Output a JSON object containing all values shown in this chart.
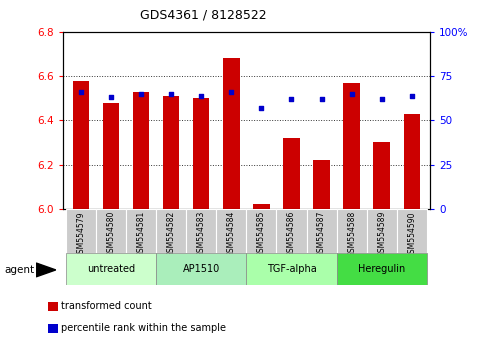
{
  "title": "GDS4361 / 8128522",
  "samples": [
    "GSM554579",
    "GSM554580",
    "GSM554581",
    "GSM554582",
    "GSM554583",
    "GSM554584",
    "GSM554585",
    "GSM554586",
    "GSM554587",
    "GSM554588",
    "GSM554589",
    "GSM554590"
  ],
  "bar_values": [
    6.58,
    6.48,
    6.53,
    6.51,
    6.5,
    6.68,
    6.02,
    6.32,
    6.22,
    6.57,
    6.3,
    6.43
  ],
  "percentile_values": [
    66,
    63,
    65,
    65,
    64,
    66,
    57,
    62,
    62,
    65,
    62,
    64
  ],
  "bar_bottom": 6.0,
  "ylim_left": [
    6.0,
    6.8
  ],
  "ylim_right": [
    0,
    100
  ],
  "yticks_left": [
    6.0,
    6.2,
    6.4,
    6.6,
    6.8
  ],
  "yticks_right": [
    0,
    25,
    50,
    75,
    100
  ],
  "ytick_labels_right": [
    "0",
    "25",
    "50",
    "75",
    "100%"
  ],
  "bar_color": "#cc0000",
  "dot_color": "#0000cc",
  "grid_color": "#000000",
  "bg_color": "#ffffff",
  "agent_groups": [
    {
      "label": "untreated",
      "start": 0,
      "end": 2,
      "color": "#ccffcc"
    },
    {
      "label": "AP1510",
      "start": 3,
      "end": 5,
      "color": "#aaeebb"
    },
    {
      "label": "TGF-alpha",
      "start": 6,
      "end": 8,
      "color": "#aaffaa"
    },
    {
      "label": "Heregulin",
      "start": 9,
      "end": 11,
      "color": "#44dd44"
    }
  ],
  "sample_label_color": "#cccccc",
  "legend_items": [
    {
      "color": "#cc0000",
      "label": "transformed count"
    },
    {
      "color": "#0000cc",
      "label": "percentile rank within the sample"
    }
  ],
  "agent_label": "agent"
}
